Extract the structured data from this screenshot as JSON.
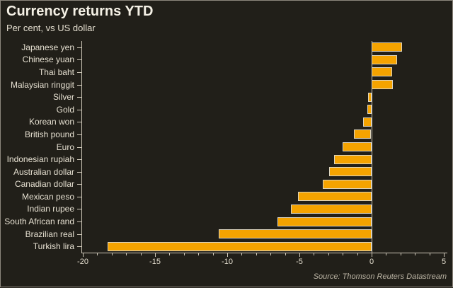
{
  "header": {
    "title": "Currency returns YTD",
    "subtitle": "Per cent, vs US dollar"
  },
  "footer": {
    "source": "Source: Thomson Reuters Datastream"
  },
  "colors": {
    "background": "#211F19",
    "bar_fill": "#F5A300",
    "bar_border": "#DCD4C0",
    "axis": "#CFC8B9",
    "text": "#E6E0D1",
    "muted_text": "#BAB3A3",
    "frame": "#8C867C"
  },
  "chart_data": {
    "type": "bar",
    "orientation": "horizontal",
    "title": "Currency returns YTD",
    "subtitle": "Per cent, vs US dollar",
    "categories": [
      "Japanese yen",
      "Chinese yuan",
      "Thai baht",
      "Malaysian ringgit",
      "Silver",
      "Gold",
      "Korean won",
      "British pound",
      "Euro",
      "Indonesian rupiah",
      "Australian dollar",
      "Canadian dollar",
      "Mexican peso",
      "Indian rupee",
      "South African rand",
      "Brazilian real",
      "Turkish lira"
    ],
    "values": [
      2.1,
      1.75,
      1.4,
      1.45,
      -0.25,
      -0.3,
      -0.6,
      -1.2,
      -2.0,
      -2.6,
      -2.95,
      -3.4,
      -5.1,
      -5.6,
      -6.5,
      -10.6,
      -18.3
    ],
    "xlim": [
      -20.1,
      5.2
    ],
    "xticks": [
      -20,
      -15,
      -10,
      -5,
      0,
      5
    ],
    "minor_tick_step": 1,
    "grid": false,
    "legend": null,
    "source": "Source: Thomson Reuters Datastream"
  }
}
